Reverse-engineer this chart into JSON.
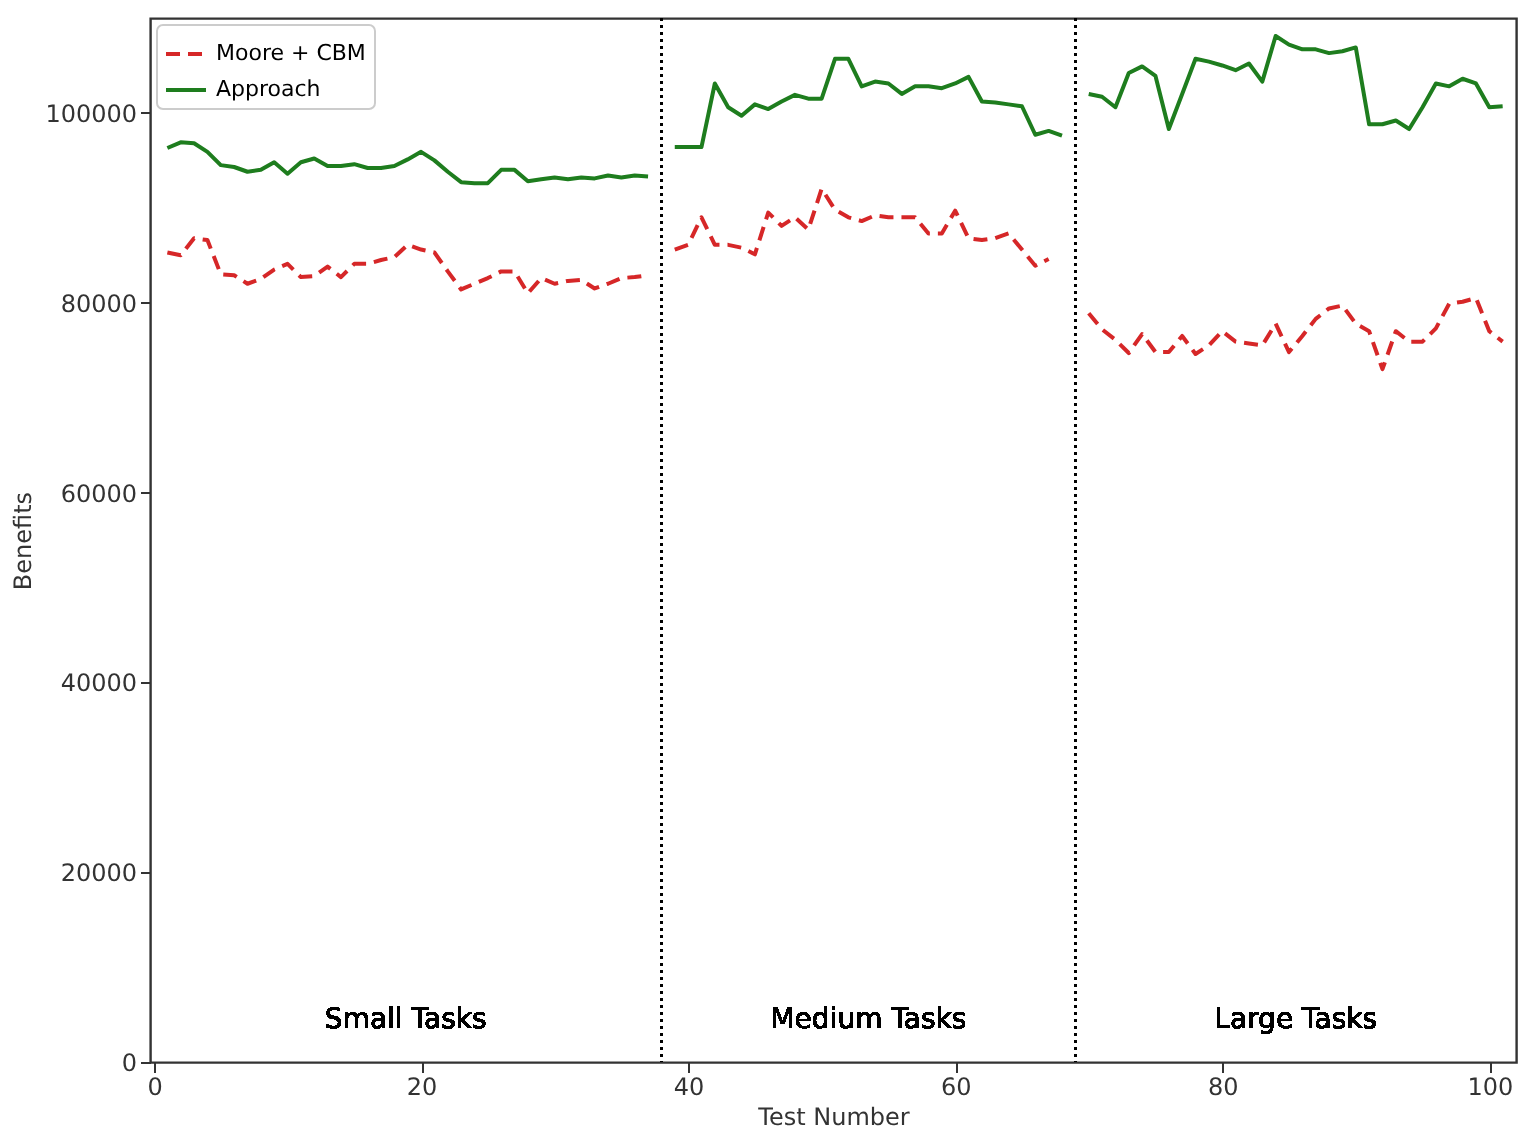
{
  "chart_data": {
    "type": "line",
    "xlabel": "Test Number",
    "ylabel": "Benefits",
    "x": [
      1,
      2,
      3,
      4,
      5,
      6,
      7,
      8,
      9,
      10,
      11,
      12,
      13,
      14,
      15,
      16,
      17,
      18,
      19,
      20,
      21,
      22,
      23,
      24,
      25,
      26,
      27,
      28,
      29,
      30,
      31,
      32,
      33,
      34,
      35,
      36,
      37,
      38,
      39,
      40,
      41,
      42,
      43,
      44,
      45,
      46,
      47,
      48,
      49,
      50,
      51,
      52,
      53,
      54,
      55,
      56,
      57,
      58,
      59,
      60,
      61,
      62,
      63,
      64,
      65,
      66,
      67,
      68,
      69,
      70,
      71,
      72,
      73,
      74,
      75,
      76,
      77,
      78,
      79,
      80,
      81,
      82,
      83,
      84,
      85,
      86,
      87,
      88,
      89,
      90,
      91,
      92,
      93,
      94,
      95,
      96,
      97,
      98,
      99,
      100,
      101
    ],
    "series": [
      {
        "name": "Moore + CBM",
        "color": "#d62728",
        "line_style": "dashed",
        "values": [
          85300,
          85000,
          86800,
          86600,
          83000,
          82900,
          82000,
          82500,
          83500,
          84100,
          82700,
          82800,
          83800,
          82700,
          84100,
          84100,
          84500,
          84800,
          86100,
          85600,
          85300,
          83300,
          81400,
          82000,
          82600,
          83300,
          83300,
          81000,
          82600,
          82000,
          82300,
          82400,
          81500,
          82000,
          82600,
          82700,
          82900,
          null,
          85600,
          86100,
          89000,
          86100,
          86100,
          85800,
          85100,
          89500,
          88100,
          89000,
          87700,
          92000,
          89800,
          89000,
          88600,
          89200,
          89000,
          89000,
          89000,
          87300,
          87300,
          89700,
          86800,
          86600,
          86800,
          87300,
          85600,
          83900,
          84600,
          null,
          null,
          78900,
          77200,
          76100,
          74700,
          76700,
          74800,
          74800,
          76500,
          74600,
          75500,
          77000,
          75900,
          75700,
          75500,
          77800,
          74800,
          76500,
          78300,
          79400,
          79700,
          77800,
          77000,
          73000,
          77000,
          75900,
          75900,
          77300,
          79900,
          80100,
          80500,
          77000,
          75900
        ]
      },
      {
        "name": "Approach",
        "color": "#1e7d1e",
        "line_style": "solid",
        "values": [
          96300,
          96900,
          96800,
          95900,
          94500,
          94300,
          93800,
          94000,
          94800,
          93600,
          94800,
          95200,
          94400,
          94400,
          94600,
          94200,
          94200,
          94400,
          95100,
          95900,
          95000,
          93800,
          92700,
          92600,
          92600,
          94000,
          94000,
          92800,
          93000,
          93200,
          93000,
          93200,
          93100,
          93400,
          93200,
          93400,
          93300,
          null,
          96400,
          96400,
          96400,
          103100,
          100600,
          99700,
          100900,
          100400,
          101200,
          101900,
          101500,
          101500,
          105700,
          105700,
          102800,
          103300,
          103100,
          102000,
          102800,
          102800,
          102600,
          103100,
          103800,
          101200,
          101100,
          100900,
          100700,
          97700,
          98100,
          97600,
          null,
          102000,
          101700,
          100600,
          104200,
          104900,
          103900,
          98300,
          102000,
          105700,
          105400,
          105000,
          104500,
          105200,
          103300,
          108100,
          107200,
          106700,
          106700,
          106300,
          106500,
          106900,
          98800,
          98800,
          99200,
          98300,
          100600,
          103100,
          102800,
          103600,
          103100,
          100600,
          100700
        ]
      }
    ],
    "xlim": [
      -0.3,
      102
    ],
    "xticks": [
      0,
      20,
      40,
      60,
      80,
      100
    ],
    "ylim": [
      0,
      110000
    ],
    "yticks": [
      0,
      20000,
      40000,
      60000,
      80000,
      100000
    ],
    "ref_lines": [
      {
        "axis": "x",
        "value": 38,
        "color": "#000000",
        "line_style": "dotted"
      },
      {
        "axis": "x",
        "value": 69,
        "color": "#000000",
        "line_style": "dotted"
      }
    ],
    "annotations": [
      "Small Tasks",
      "Medium Tasks",
      "Large Tasks"
    ],
    "legend": "top left",
    "grid": false,
    "marker": "none"
  }
}
